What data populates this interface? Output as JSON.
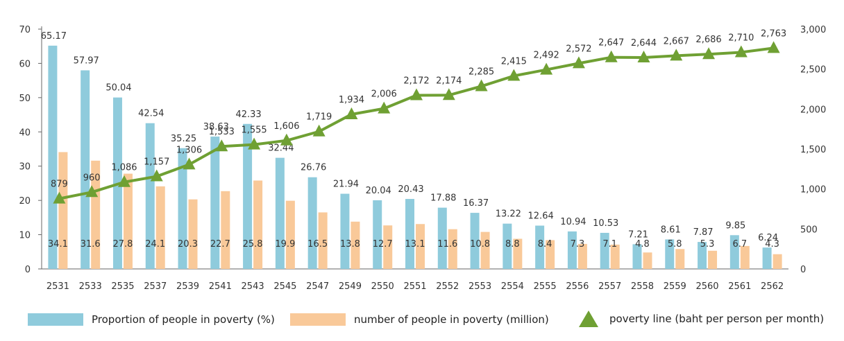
{
  "chart_data": {
    "type": "bar",
    "categories": [
      "2531",
      "2533",
      "2535",
      "2537",
      "2539",
      "2541",
      "2543",
      "2545",
      "2547",
      "2549",
      "2550",
      "2551",
      "2552",
      "2553",
      "2554",
      "2555",
      "2556",
      "2557",
      "2558",
      "2559",
      "2560",
      "2561",
      "2562"
    ],
    "series": [
      {
        "name": "Proportion of people in poverty (%)",
        "type": "bar",
        "axis": "left",
        "values": [
          65.17,
          57.97,
          50.04,
          42.54,
          35.25,
          38.63,
          42.33,
          32.44,
          26.76,
          21.94,
          20.04,
          20.43,
          17.88,
          16.37,
          13.22,
          12.64,
          10.94,
          10.53,
          7.21,
          8.61,
          7.87,
          9.85,
          6.24
        ],
        "labels": [
          "65.17",
          "57.97",
          "50.04",
          "42.54",
          "35.25",
          "38.63",
          "42.33",
          "32.44",
          "26.76",
          "21.94",
          "20.04",
          "20.43",
          "17.88",
          "16.37",
          "13.22",
          "12.64",
          "10.94",
          "10.53",
          "7.21",
          "8.61",
          "7.87",
          "9.85",
          "6.24"
        ]
      },
      {
        "name": "number of people in poverty (million)",
        "type": "bar",
        "axis": "left",
        "values": [
          34.1,
          31.6,
          27.8,
          24.1,
          20.3,
          22.7,
          25.8,
          19.9,
          16.5,
          13.8,
          12.7,
          13.1,
          11.6,
          10.8,
          8.8,
          8.4,
          7.3,
          7.1,
          4.8,
          5.8,
          5.3,
          6.7,
          4.3
        ],
        "labels": [
          "34.1",
          "31.6",
          "27.8",
          "24.1",
          "20.3",
          "22.7",
          "25.8",
          "19.9",
          "16.5",
          "13.8",
          "12.7",
          "13.1",
          "11.6",
          "10.8",
          "8.8",
          "8.4",
          "7.3",
          "7.1",
          "4.8",
          "5.8",
          "5.3",
          "6.7",
          "4.3"
        ]
      },
      {
        "name": "poverty line (baht per person per month)",
        "type": "line",
        "axis": "right",
        "values": [
          879,
          960,
          1086,
          1157,
          1306,
          1533,
          1555,
          1606,
          1719,
          1934,
          2006,
          2172,
          2174,
          2285,
          2415,
          2492,
          2572,
          2647,
          2644,
          2667,
          2686,
          2710,
          2763
        ],
        "labels": [
          "879",
          "960",
          "1,086",
          "1,157",
          "1,306",
          "1,533",
          "1,555",
          "1,606",
          "1,719",
          "1,934",
          "2,006",
          "2,172",
          "2,174",
          "2,285",
          "2,415",
          "2,492",
          "2,572",
          "2,647",
          "2,644",
          "2,667",
          "2,686",
          "2,710",
          "2,763"
        ]
      }
    ],
    "left_axis": {
      "ylim": [
        0,
        70
      ],
      "ticks": [
        0,
        10,
        20,
        30,
        40,
        50,
        60,
        70
      ]
    },
    "right_axis": {
      "ylim": [
        0,
        3000
      ],
      "ticks": [
        0,
        500,
        1000,
        1500,
        2000,
        2500,
        3000
      ],
      "tick_labels": [
        "0",
        "500",
        "1,000",
        "1,500",
        "2,000",
        "2,500",
        "3,000"
      ]
    },
    "grid": false,
    "legend_placement": "bottom",
    "colors": {
      "percent": "#8fcbdc",
      "number": "#f9c999",
      "line": "#6fa033",
      "axis": "#666666"
    }
  },
  "legend": {
    "items": [
      {
        "label": "Proportion of people in poverty (%)"
      },
      {
        "label": "number of people in poverty (million)"
      },
      {
        "label": "poverty line (baht per person per month)"
      }
    ]
  }
}
